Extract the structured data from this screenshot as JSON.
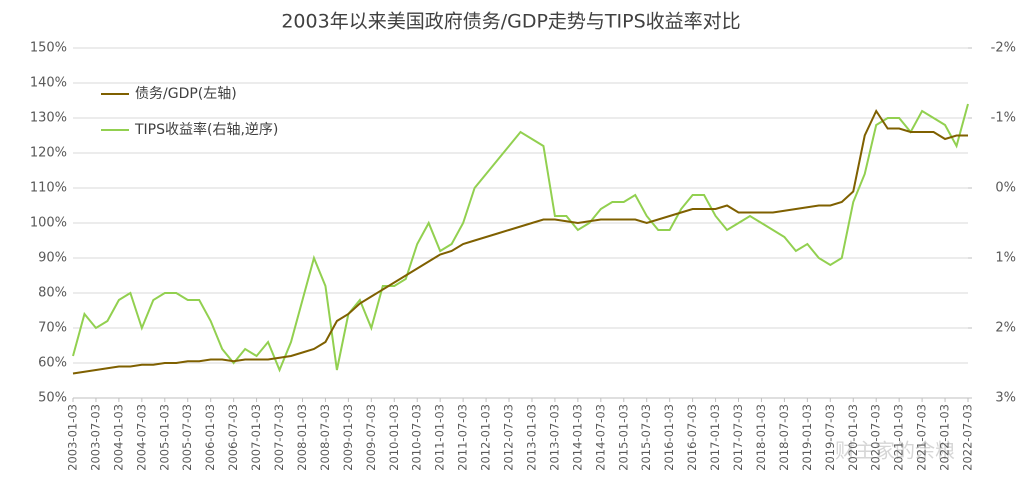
{
  "chart_data": {
    "type": "line",
    "title": "2003年以来美国政府债务/GDP走势与TIPS收益率对比",
    "watermark": "财主家的余粮",
    "categories": [
      "2003-01-03",
      null,
      "2003-07-03",
      null,
      "2004-01-03",
      null,
      "2004-07-03",
      null,
      "2005-01-03",
      null,
      "2005-07-03",
      null,
      "2006-01-03",
      null,
      "2006-07-03",
      null,
      "2007-01-03",
      null,
      "2007-07-03",
      null,
      "2008-01-03",
      null,
      "2008-07-03",
      null,
      "2009-01-03",
      null,
      "2009-07-03",
      null,
      "2010-01-03",
      null,
      "2010-07-03",
      null,
      "2011-01-03",
      null,
      "2011-07-03",
      null,
      "2012-01-03",
      null,
      "2012-07-03",
      null,
      "2013-01-03",
      null,
      "2013-07-03",
      null,
      "2014-01-03",
      null,
      "2014-07-03",
      null,
      "2015-01-03",
      null,
      "2015-07-03",
      null,
      "2016-01-03",
      null,
      "2016-07-03",
      null,
      "2017-01-03",
      null,
      "2017-07-03",
      null,
      "2018-01-03",
      null,
      "2018-07-03",
      null,
      "2019-01-03",
      null,
      "2019-07-03",
      null,
      "2020-01-03",
      null,
      "2020-07-03",
      null,
      "2021-01-03",
      null,
      "2021-07-03",
      null,
      "2022-01-03",
      null,
      "2022-07-03"
    ],
    "series": [
      {
        "name": "债务/GDP(左轴)",
        "color": "#7f6000",
        "axis": "y",
        "values": [
          57,
          57.5,
          58,
          58.5,
          59,
          59,
          59.5,
          59.5,
          60,
          60,
          60.5,
          60.5,
          61,
          61,
          60.5,
          61,
          61,
          61,
          61.5,
          62,
          63,
          64,
          66,
          72,
          74,
          77,
          79,
          81,
          83,
          85,
          87,
          89,
          91,
          92,
          94,
          95,
          96,
          97,
          98,
          99,
          100,
          101,
          101,
          100.5,
          100,
          100.5,
          101,
          101,
          101,
          101,
          100,
          101,
          102,
          103,
          104,
          104,
          104,
          105,
          103,
          103,
          103,
          103,
          103.5,
          104,
          104.5,
          105,
          105,
          106,
          109,
          125,
          132,
          127,
          127,
          126,
          126,
          126,
          124,
          125,
          125
        ]
      },
      {
        "name": "TIPS收益率(右轴,逆序)",
        "color": "#92d050",
        "axis": "y2",
        "values": [
          2.4,
          1.8,
          2.0,
          1.9,
          1.6,
          1.5,
          2.0,
          1.6,
          1.5,
          1.5,
          1.6,
          1.6,
          1.9,
          2.3,
          2.5,
          2.3,
          2.4,
          2.2,
          2.6,
          2.2,
          1.6,
          1.0,
          1.4,
          2.6,
          1.8,
          1.6,
          2.0,
          1.4,
          1.4,
          1.3,
          0.8,
          0.5,
          0.9,
          0.8,
          0.5,
          0.0,
          -0.2,
          -0.4,
          -0.6,
          -0.8,
          -0.7,
          -0.6,
          0.4,
          0.4,
          0.6,
          0.5,
          0.3,
          0.2,
          0.2,
          0.1,
          0.4,
          0.6,
          0.6,
          0.3,
          0.1,
          0.1,
          0.4,
          0.6,
          0.5,
          0.4,
          0.5,
          0.6,
          0.7,
          0.9,
          0.8,
          1.0,
          1.1,
          1.0,
          0.2,
          -0.2,
          -0.9,
          -1.0,
          -1.0,
          -0.8,
          -1.1,
          -1.0,
          -0.9,
          -0.6,
          -1.2
        ]
      }
    ],
    "ylim": [
      50,
      150
    ],
    "yticks": [
      {
        "value": 50,
        "label": "50%"
      },
      {
        "value": 60,
        "label": "60%"
      },
      {
        "value": 70,
        "label": "70%"
      },
      {
        "value": 80,
        "label": "80%"
      },
      {
        "value": 90,
        "label": "90%"
      },
      {
        "value": 100,
        "label": "100%"
      },
      {
        "value": 110,
        "label": "110%"
      },
      {
        "value": 120,
        "label": "120%"
      },
      {
        "value": 130,
        "label": "130%"
      },
      {
        "value": 140,
        "label": "140%"
      },
      {
        "value": 150,
        "label": "150%"
      }
    ],
    "y2lim": [
      -2,
      3
    ],
    "y2_reversed": true,
    "y2ticks": [
      {
        "value": -2,
        "label": "-2%"
      },
      {
        "value": -1,
        "label": "-1%"
      },
      {
        "value": 0,
        "label": "0%"
      },
      {
        "value": 1,
        "label": "1%"
      },
      {
        "value": 2,
        "label": "2%"
      },
      {
        "value": 3,
        "label": "3%"
      }
    ],
    "grid": true,
    "legend": "upper-left"
  }
}
